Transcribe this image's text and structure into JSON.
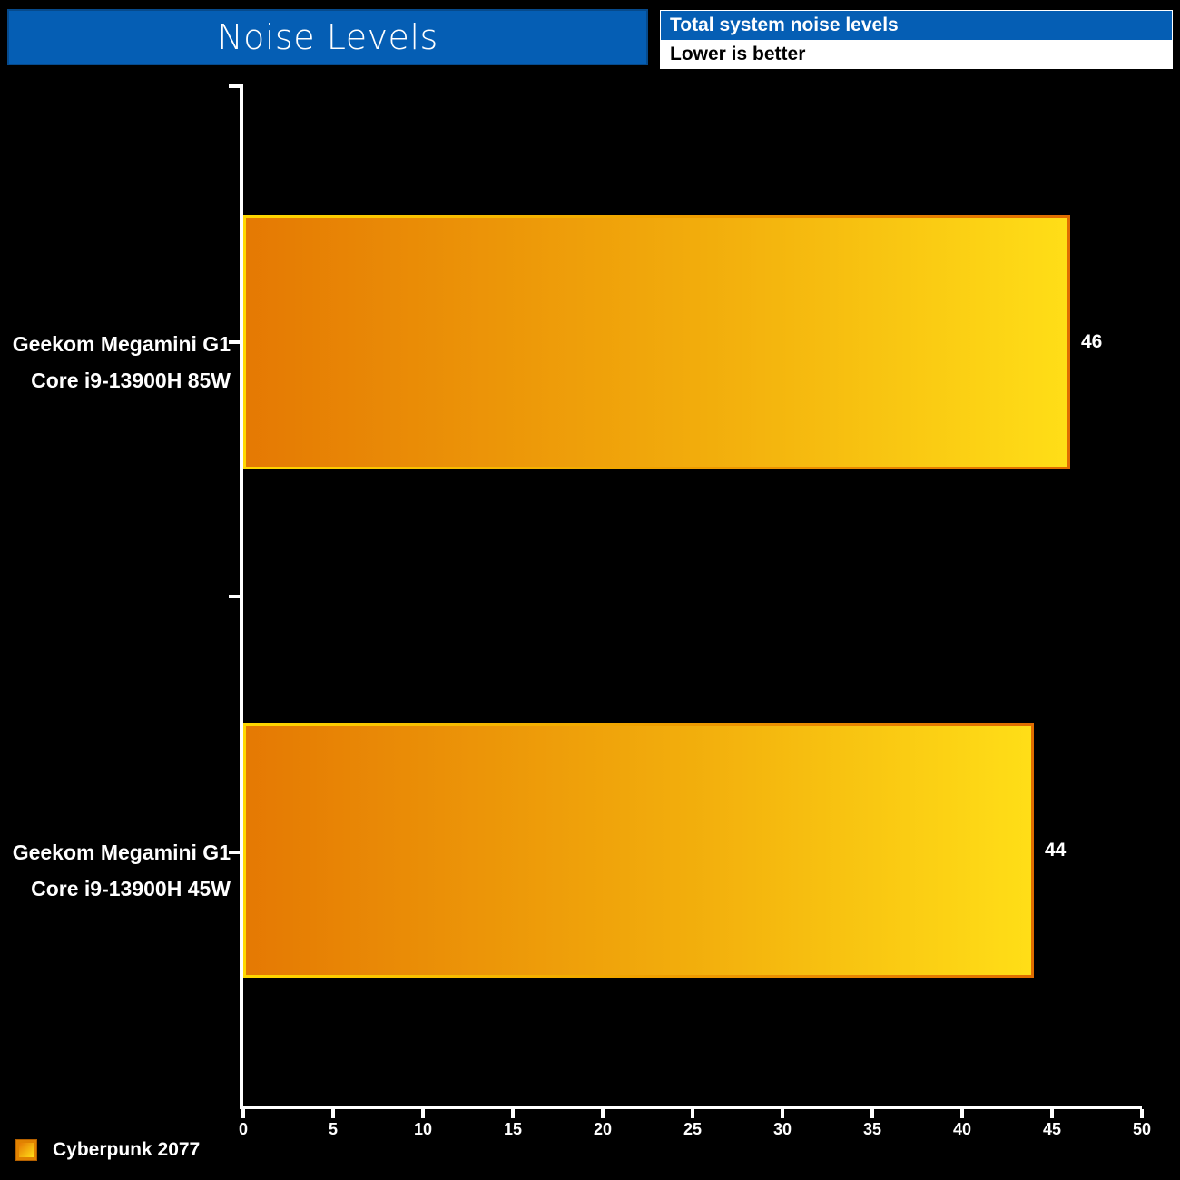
{
  "header": {
    "title": "Noise Levels",
    "banner_primary": "Total system noise levels",
    "banner_secondary": "Lower is better"
  },
  "chart_data": {
    "type": "bar",
    "orientation": "horizontal",
    "title": "Noise Levels",
    "subtitle": "Total system noise levels",
    "note": "Lower is better",
    "categories": [
      {
        "line1": "Geekom Megamini G1",
        "line2": "Core i9-13900H 85W"
      },
      {
        "line1": "Geekom Megamini G1",
        "line2": "Core i9-13900H 45W"
      }
    ],
    "series": [
      {
        "name": "Cyberpunk 2077",
        "values": [
          46,
          44
        ]
      }
    ],
    "xlabel": "",
    "ylabel": "",
    "xlim": [
      0,
      50
    ],
    "xticks": [
      0,
      5,
      10,
      15,
      20,
      25,
      30,
      35,
      40,
      45,
      50
    ],
    "grid": false,
    "legend_position": "bottom-left",
    "bar_fill_gradient": [
      "#E57903",
      "#FFDE17"
    ],
    "bar_border_gradient": [
      "#FFD800",
      "#E06C00"
    ]
  },
  "legend": {
    "items": [
      {
        "label": "Cyberpunk 2077"
      }
    ]
  },
  "colors": {
    "background": "#000000",
    "header_blue": "#055EB4",
    "axis": "#FFFFFF",
    "text": "#FFFFFF",
    "note_text": "#000000",
    "note_background": "#FFFFFF"
  }
}
